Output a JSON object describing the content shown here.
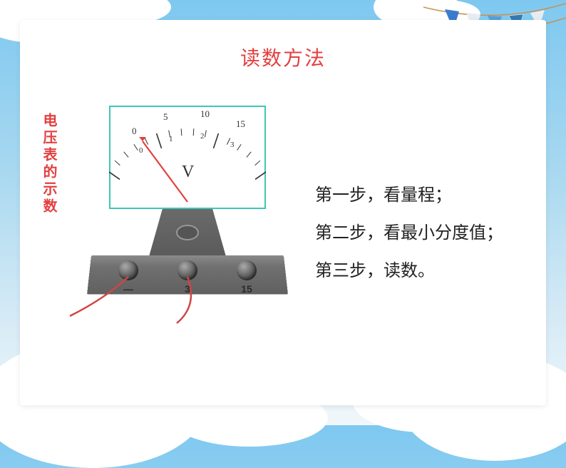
{
  "title": "读数方法",
  "side_label": "电压表的示数",
  "steps": {
    "s1": "第一步，看量程；",
    "s2": "第二步，看最小分度值；",
    "s3": "第三步，读数。"
  },
  "meter": {
    "unit_label": "V",
    "upper_scale": {
      "nums": [
        "0",
        "5",
        "10",
        "15"
      ],
      "color": "#444",
      "max": 15
    },
    "lower_scale": {
      "nums": [
        "0",
        "1",
        "2",
        "3"
      ],
      "color": "#444",
      "max": 3
    },
    "frame_border_color": "#3ec7b5",
    "needle_color": "#e34040",
    "terminal_labels": {
      "l1": "—",
      "l2": "3",
      "l3": "15"
    },
    "wire_color": "#d04545",
    "body_color": "#6a6a6a",
    "base_color": "#787878"
  },
  "bunting_colors": [
    "#3b7bcf",
    "#e87c3a",
    "#357ab5",
    "#5a9fd4"
  ],
  "background": {
    "sky_top": "#7ec8f0",
    "sky_bottom": "#f0f7fa",
    "cloud": "#ffffff"
  }
}
